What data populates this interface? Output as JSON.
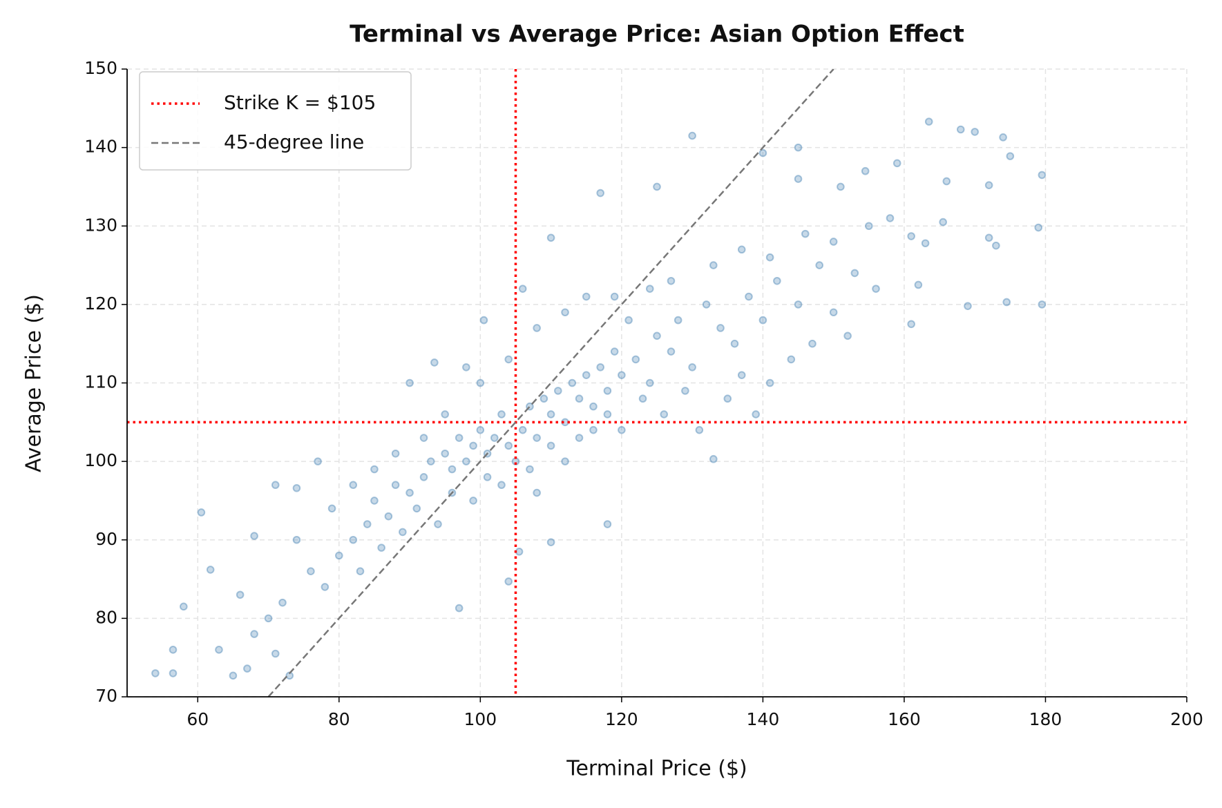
{
  "chart_data": {
    "type": "scatter",
    "title": "Terminal vs Average Price: Asian Option Effect",
    "x_label": "Terminal Price ($)",
    "y_label": "Average Price ($)",
    "color": "#4682b4",
    "grid": true,
    "legend": "upper left",
    "xlim": [
      50,
      200
    ],
    "xticks": [
      60,
      80,
      100,
      120,
      140,
      160,
      180,
      200
    ],
    "ylim": [
      70,
      150
    ],
    "yticks": [
      70,
      80,
      90,
      100,
      110,
      120,
      130,
      140,
      150
    ],
    "reference_lines": [
      {
        "name": "Strike K = $105",
        "color": "#ff0000",
        "value": 105
      },
      {
        "name": "45-degree line",
        "color": "#777777",
        "x": [
          70,
          150
        ],
        "y": [
          70,
          150
        ]
      }
    ],
    "x": [
      54,
      56.5,
      56.5,
      60.5,
      58,
      65,
      73,
      68,
      130,
      163.5,
      168,
      170,
      174,
      175,
      179.5,
      179.5,
      174.5,
      169,
      161,
      133,
      118,
      97,
      104,
      105.5,
      110,
      110,
      117,
      125,
      145,
      140,
      159,
      166,
      172,
      145,
      154.5,
      151,
      161,
      163,
      165.5,
      172,
      173,
      179,
      162,
      106,
      100.5,
      90,
      93.5,
      77,
      74,
      71,
      61.8,
      63,
      67,
      71,
      80,
      82,
      84,
      85,
      87,
      88,
      90,
      92,
      93,
      95,
      96,
      97,
      98,
      99,
      100,
      101,
      102,
      103,
      104,
      106,
      107,
      108,
      109,
      110,
      111,
      112,
      113,
      114,
      115,
      116,
      117,
      118,
      119,
      120,
      122,
      124,
      125,
      127,
      128,
      130,
      132,
      134,
      136,
      138,
      140,
      142,
      145,
      148,
      150,
      153,
      156,
      76,
      78,
      72,
      70,
      68,
      66,
      74,
      79,
      83,
      86,
      89,
      91,
      94,
      96,
      99,
      101,
      103,
      105,
      107,
      108,
      110,
      112,
      114,
      116,
      118,
      120,
      121,
      123,
      126,
      129,
      131,
      135,
      137,
      139,
      141,
      144,
      147,
      152,
      100,
      95,
      92,
      88,
      85,
      82,
      98,
      104,
      108,
      112,
      115,
      119,
      124,
      127,
      133,
      137,
      141,
      146,
      150,
      155,
      158
    ],
    "values": [
      73,
      76,
      73,
      93.5,
      81.5,
      72.7,
      72.7,
      90.5,
      141.5,
      143.3,
      142.3,
      142,
      141.3,
      138.9,
      136.5,
      120,
      120.3,
      119.8,
      117.5,
      100.3,
      92,
      81.3,
      84.7,
      88.5,
      89.7,
      128.5,
      134.2,
      135,
      140,
      139.3,
      138,
      135.7,
      135.2,
      136,
      137,
      135,
      128.7,
      127.8,
      130.5,
      128.5,
      127.5,
      129.8,
      122.5,
      122,
      118,
      110,
      112.6,
      100,
      96.6,
      97,
      86.2,
      76,
      73.6,
      75.5,
      88,
      90,
      92,
      95,
      93,
      97,
      96,
      98,
      100,
      101,
      99,
      103,
      100,
      102,
      104,
      101,
      103,
      106,
      102,
      104,
      107,
      103,
      108,
      106,
      109,
      105,
      110,
      108,
      111,
      107,
      112,
      109,
      114,
      111,
      113,
      110,
      116,
      114,
      118,
      112,
      120,
      117,
      115,
      121,
      118,
      123,
      120,
      125,
      119,
      124,
      122,
      86,
      84,
      82,
      80,
      78,
      83,
      90,
      94,
      86,
      89,
      91,
      94,
      92,
      96,
      95,
      98,
      97,
      100,
      99,
      96,
      102,
      100,
      103,
      104,
      106,
      104,
      118,
      108,
      106,
      109,
      104,
      108,
      111,
      106,
      110,
      113,
      115,
      116,
      110,
      106,
      103,
      101,
      99,
      97,
      112,
      113,
      117,
      119,
      121,
      121,
      122,
      123,
      125,
      127,
      126,
      129,
      128,
      130,
      131
    ]
  }
}
